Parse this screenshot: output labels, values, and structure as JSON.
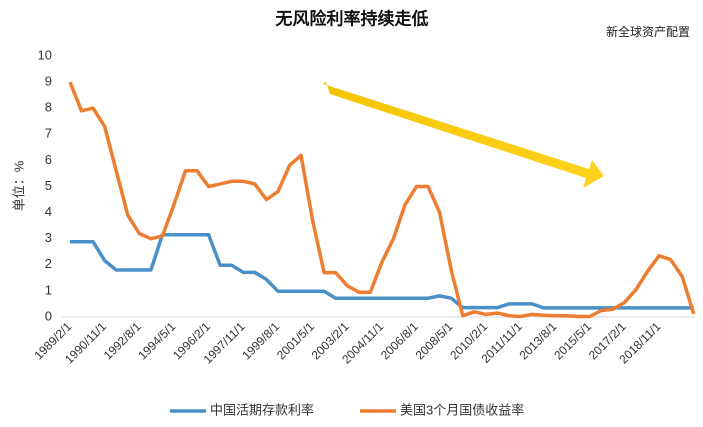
{
  "chart_data": {
    "type": "line",
    "title": "无风险利率持续走低",
    "source": "新全球资产配置",
    "y_label": "单位：%",
    "categories": [
      "1989/2/1",
      null,
      null,
      "1990/11/1",
      null,
      null,
      "1992/8/1",
      null,
      null,
      "1994/5/1",
      null,
      null,
      "1996/2/1",
      null,
      null,
      "1997/11/1",
      null,
      null,
      "1999/8/1",
      null,
      null,
      "2001/5/1",
      null,
      null,
      "2003/2/1",
      null,
      null,
      "2004/11/1",
      null,
      null,
      "2006/8/1",
      null,
      null,
      "2008/5/1",
      null,
      null,
      "2010/2/1",
      null,
      null,
      "2011/11/1",
      null,
      null,
      "2013/8/1",
      null,
      null,
      "2015/5/1",
      null,
      null,
      "2017/2/1",
      null,
      null,
      "2018/11/1",
      null,
      null,
      null
    ],
    "series": [
      {
        "name": "中国活期存款利率",
        "color": "#4a90c8",
        "values": [
          2.88,
          2.88,
          2.88,
          2.16,
          1.8,
          1.8,
          1.8,
          1.8,
          3.15,
          3.15,
          3.15,
          3.15,
          3.15,
          1.98,
          1.98,
          1.71,
          1.71,
          1.44,
          0.99,
          0.99,
          0.99,
          0.99,
          0.99,
          0.72,
          0.72,
          0.72,
          0.72,
          0.72,
          0.72,
          0.72,
          0.72,
          0.72,
          0.81,
          0.72,
          0.36,
          0.36,
          0.36,
          0.36,
          0.5,
          0.5,
          0.5,
          0.35,
          0.35,
          0.35,
          0.35,
          0.35,
          0.35,
          0.35,
          0.35,
          0.35,
          0.35,
          0.35,
          0.35,
          0.35,
          0.35
        ]
      },
      {
        "name": "美国3个月国债收益率",
        "color": "#ed7d31",
        "values": [
          9.0,
          7.9,
          8.0,
          7.3,
          5.6,
          3.9,
          3.2,
          3.0,
          3.1,
          4.3,
          5.6,
          5.6,
          5.0,
          5.1,
          5.2,
          5.2,
          5.1,
          4.5,
          4.8,
          5.8,
          6.2,
          3.7,
          1.7,
          1.7,
          1.2,
          0.95,
          0.95,
          2.1,
          3.0,
          4.3,
          5.0,
          5.0,
          4.0,
          1.8,
          0.05,
          0.2,
          0.1,
          0.15,
          0.05,
          0.02,
          0.1,
          0.07,
          0.05,
          0.05,
          0.02,
          0.02,
          0.25,
          0.3,
          0.55,
          1.05,
          1.75,
          2.35,
          2.2,
          1.55,
          0.12
        ]
      }
    ],
    "ylim": [
      0,
      10
    ],
    "yticks": [
      0,
      1,
      2,
      3,
      4,
      5,
      6,
      7,
      8,
      9,
      10
    ],
    "legend": "bottom"
  }
}
